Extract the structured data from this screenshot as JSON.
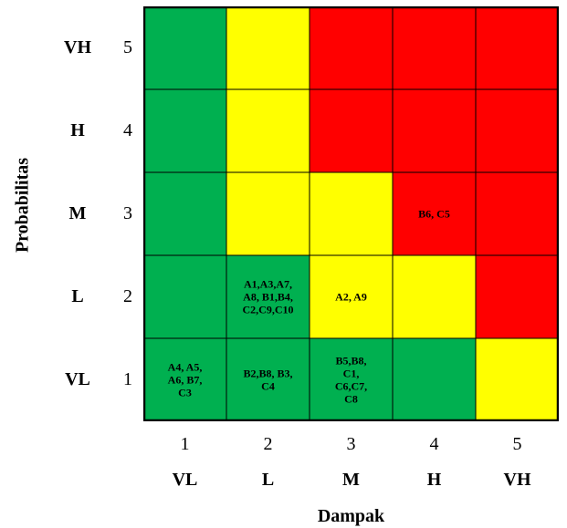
{
  "chart_data": {
    "type": "heatmap",
    "title": "",
    "xlabel": "Dampak",
    "ylabel": "Probabilitas",
    "x_ticks": [
      {
        "num": "1",
        "label": "VL"
      },
      {
        "num": "2",
        "label": "L"
      },
      {
        "num": "3",
        "label": "M"
      },
      {
        "num": "4",
        "label": "H"
      },
      {
        "num": "5",
        "label": "VH"
      }
    ],
    "y_ticks": [
      {
        "num": "5",
        "label": "VH"
      },
      {
        "num": "4",
        "label": "H"
      },
      {
        "num": "3",
        "label": "M"
      },
      {
        "num": "2",
        "label": "L"
      },
      {
        "num": "1",
        "label": "VL"
      }
    ],
    "colors": {
      "low": "#00b050",
      "medium": "#ffff00",
      "high": "#ff0000"
    },
    "grid": [
      [
        "low",
        "medium",
        "high",
        "high",
        "high"
      ],
      [
        "low",
        "medium",
        "high",
        "high",
        "high"
      ],
      [
        "low",
        "medium",
        "medium",
        "high",
        "high"
      ],
      [
        "low",
        "low",
        "medium",
        "medium",
        "high"
      ],
      [
        "low",
        "low",
        "low",
        "low",
        "medium"
      ]
    ],
    "cell_labels": [
      [
        "",
        "",
        "",
        "",
        ""
      ],
      [
        "",
        "",
        "",
        "",
        ""
      ],
      [
        "",
        "",
        "",
        "B6, C5",
        ""
      ],
      [
        "",
        "A1,A3,A7,\nA8, B1,B4,\nC2,C9,C10",
        "A2, A9",
        "",
        ""
      ],
      [
        "A4, A5,\nA6, B7,\nC3",
        "B2,B8, B3,\nC4",
        "B5,B8,\nC1,\nC6,C7,\nC8",
        "",
        ""
      ]
    ]
  }
}
